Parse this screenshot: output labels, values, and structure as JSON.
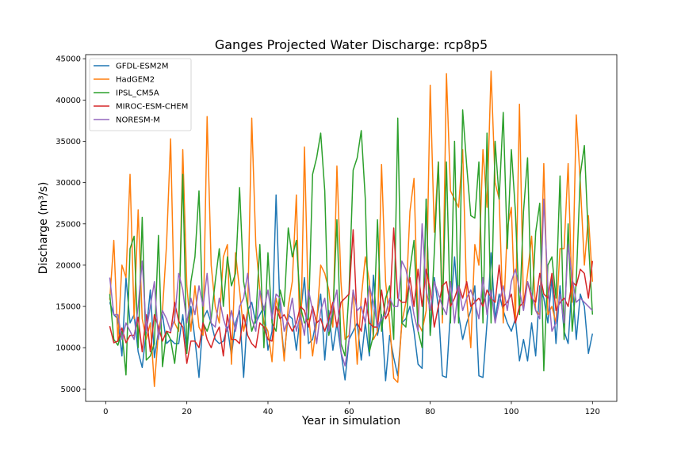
{
  "chart_data": {
    "type": "line",
    "title": "Ganges Projected Water Discharge: rcp8p5",
    "xlabel": "Year in simulation",
    "ylabel": "Discharge (m³/s)",
    "xlim": [
      -4.95,
      126
    ],
    "ylim": [
      3500,
      45500
    ],
    "xticks": [
      0,
      20,
      40,
      60,
      80,
      100,
      120
    ],
    "yticks": [
      5000,
      10000,
      15000,
      20000,
      25000,
      30000,
      35000,
      40000,
      45000
    ],
    "grid": false,
    "legend_position": "top-left",
    "x": [
      1,
      2,
      3,
      4,
      5,
      6,
      7,
      8,
      9,
      10,
      11,
      12,
      13,
      14,
      15,
      16,
      17,
      18,
      19,
      20,
      21,
      22,
      23,
      24,
      25,
      26,
      27,
      28,
      29,
      30,
      31,
      32,
      33,
      34,
      35,
      36,
      37,
      38,
      39,
      40,
      41,
      42,
      43,
      44,
      45,
      46,
      47,
      48,
      49,
      50,
      51,
      52,
      53,
      54,
      55,
      56,
      57,
      58,
      59,
      60,
      61,
      62,
      63,
      64,
      65,
      66,
      67,
      68,
      69,
      70,
      71,
      72,
      73,
      74,
      75,
      76,
      77,
      78,
      79,
      80,
      81,
      82,
      83,
      84,
      85,
      86,
      87,
      88,
      89,
      90,
      91,
      92,
      93,
      94,
      95,
      96,
      97,
      98,
      99,
      100,
      101,
      102,
      103,
      104,
      105,
      106,
      107,
      108,
      109,
      110,
      111,
      112,
      113,
      114,
      115,
      116,
      117,
      118,
      119,
      120
    ],
    "series": [
      {
        "name": "GFDL-ESM2M",
        "color": "#1f77b4",
        "values": [
          15500,
          14000,
          13500,
          9000,
          18500,
          13000,
          14000,
          9500,
          7600,
          12000,
          17000,
          8800,
          12000,
          14000,
          10500,
          11000,
          10500,
          10500,
          14000,
          9500,
          15000,
          11000,
          6400,
          13500,
          14500,
          13000,
          11000,
          10500,
          10800,
          12500,
          9000,
          13000,
          14500,
          6400,
          14500,
          15500,
          13000,
          14000,
          15000,
          9700,
          12000,
          28500,
          14000,
          9000,
          14000,
          13500,
          9700,
          14000,
          18500,
          10500,
          11000,
          13500,
          16500,
          8500,
          14500,
          9700,
          13000,
          9500,
          6100,
          11000,
          12000,
          13000,
          8500,
          13000,
          9000,
          18800,
          11500,
          14000,
          6000,
          11500,
          8800,
          6600,
          13000,
          13500,
          15000,
          12000,
          8000,
          7500,
          28000,
          11500,
          18500,
          15000,
          6600,
          6400,
          14500,
          21000,
          14000,
          11000,
          13000,
          14500,
          17500,
          6600,
          6400,
          13000,
          21500,
          13500,
          16500,
          14500,
          13000,
          12000,
          13500,
          8400,
          11000,
          8400,
          13000,
          9000,
          17500,
          16000,
          13000,
          18500,
          10500,
          17500,
          12000,
          10500,
          18000,
          11000,
          16500,
          15000,
          9300,
          11700
        ]
      },
      {
        "name": "HadGEM2",
        "color": "#ff7f0e",
        "values": [
          15800,
          23000,
          10800,
          20000,
          18500,
          31000,
          13500,
          26700,
          13500,
          11000,
          13000,
          5300,
          12000,
          14500,
          22500,
          35300,
          13000,
          12000,
          34000,
          17500,
          12000,
          17500,
          12500,
          11500,
          38000,
          20000,
          15000,
          13000,
          21000,
          22500,
          8000,
          21500,
          17000,
          12000,
          14500,
          37800,
          22500,
          17000,
          13000,
          12000,
          8300,
          16000,
          14000,
          8400,
          15000,
          18000,
          28500,
          8700,
          34300,
          14000,
          9000,
          13000,
          20000,
          19000,
          17000,
          12500,
          32000,
          18000,
          11000,
          11500,
          17000,
          8000,
          16000,
          21000,
          18000,
          11000,
          12000,
          32200,
          18000,
          13000,
          6300,
          5800,
          13000,
          15500,
          26500,
          30500,
          13000,
          12000,
          14500,
          41800,
          24000,
          32500,
          13000,
          43200,
          29000,
          28000,
          27000,
          34000,
          16000,
          10000,
          22500,
          20000,
          34000,
          27000,
          43500,
          30000,
          28000,
          13000,
          24500,
          27000,
          13000,
          39500,
          15000,
          19000,
          23500,
          14500,
          14000,
          32300,
          14000,
          15000,
          13000,
          22000,
          22000,
          32300,
          15500,
          38200,
          30000,
          20000,
          26000,
          18000
        ]
      },
      {
        "name": "IPSL_CM5A",
        "color": "#2ca02c",
        "values": [
          16500,
          11000,
          10300,
          12000,
          6700,
          22000,
          23500,
          10000,
          25800,
          8500,
          9000,
          10500,
          23600,
          7700,
          12000,
          11000,
          8100,
          13000,
          31000,
          9300,
          18000,
          21000,
          29000,
          13000,
          12000,
          13500,
          18000,
          22000,
          15000,
          21000,
          17500,
          19000,
          29400,
          18000,
          15000,
          12000,
          13500,
          22500,
          10000,
          21500,
          13000,
          12000,
          17000,
          15000,
          24500,
          21000,
          23000,
          15000,
          13000,
          13500,
          31000,
          33000,
          36000,
          29000,
          11500,
          14000,
          25500,
          10500,
          9000,
          17000,
          31500,
          33000,
          36300,
          28000,
          9500,
          11500,
          25500,
          12000,
          16000,
          17500,
          11000,
          37800,
          13000,
          12500,
          19500,
          23000,
          12000,
          10000,
          28000,
          11500,
          21500,
          32500,
          14000,
          32500,
          13000,
          35000,
          13000,
          38800,
          32000,
          26000,
          25700,
          32500,
          13000,
          36000,
          13000,
          35000,
          28000,
          38500,
          22000,
          34000,
          26500,
          14000,
          26500,
          33000,
          14000,
          24000,
          27500,
          7200,
          20000,
          21000,
          16000,
          30800,
          11000,
          25000,
          12000,
          18000,
          31000,
          34500,
          23000,
          14000
        ]
      },
      {
        "name": "MIROC-ESM-CHEM",
        "color": "#d62728",
        "values": [
          12600,
          10600,
          10800,
          12400,
          10600,
          11500,
          11500,
          13700,
          9500,
          14000,
          9500,
          14000,
          12500,
          10800,
          12000,
          11800,
          15500,
          13200,
          12500,
          8100,
          10800,
          10800,
          10000,
          13000,
          11000,
          10000,
          11500,
          12500,
          9000,
          14000,
          11000,
          11000,
          10500,
          14000,
          11500,
          10500,
          10000,
          13000,
          12500,
          11000,
          10800,
          15000,
          13500,
          14000,
          13000,
          12000,
          13000,
          15000,
          14500,
          12500,
          15000,
          13000,
          13500,
          12000,
          13500,
          15500,
          12500,
          15500,
          16000,
          16500,
          24300,
          13000,
          12000,
          16000,
          13000,
          12500,
          12500,
          17000,
          13500,
          14500,
          24500,
          16000,
          15500,
          15500,
          18500,
          15000,
          19500,
          15000,
          19500,
          17000,
          12500,
          15000,
          17500,
          18000,
          15000,
          16000,
          17500,
          16000,
          18000,
          15000,
          15500,
          16000,
          15000,
          17000,
          16000,
          15500,
          20000,
          15000,
          15500,
          16500,
          13000,
          15000,
          15500,
          18000,
          16000,
          15500,
          19000,
          16500,
          16000,
          19000,
          14500,
          15500,
          16000,
          15000,
          18000,
          17500,
          19500,
          19000,
          16000,
          20500
        ]
      },
      {
        "name": "NORESM-M",
        "color": "#9467bd",
        "values": [
          18500,
          14000,
          14000,
          11000,
          13000,
          12000,
          11000,
          15000,
          20500,
          12000,
          15000,
          18000,
          11000,
          14500,
          13500,
          12000,
          13500,
          19000,
          17000,
          13000,
          16000,
          14000,
          17500,
          15000,
          19000,
          13000,
          12500,
          16000,
          13500,
          12000,
          14500,
          12000,
          15000,
          16000,
          19000,
          13500,
          12000,
          17000,
          14500,
          17000,
          13500,
          16500,
          16000,
          12000,
          13500,
          16000,
          12000,
          14000,
          11500,
          17000,
          14500,
          10500,
          14500,
          16000,
          12000,
          15000,
          17000,
          9500,
          7800,
          11000,
          17000,
          14500,
          15000,
          13000,
          17500,
          15500,
          12500,
          13500,
          14000,
          16000,
          15000,
          15000,
          20500,
          19500,
          17000,
          14000,
          12000,
          25000,
          17000,
          14500,
          18000,
          16500,
          15000,
          14000,
          18000,
          13000,
          17500,
          14500,
          16000,
          17000,
          15500,
          13500,
          18500,
          14000,
          17000,
          13000,
          15500,
          17500,
          14500,
          18000,
          19500,
          17000,
          14500,
          18000,
          16500,
          14500,
          13500,
          28000,
          17500,
          12000,
          13000,
          16500,
          13000,
          22500,
          18500,
          15500,
          16000,
          15500,
          15000,
          14500
        ]
      }
    ]
  }
}
